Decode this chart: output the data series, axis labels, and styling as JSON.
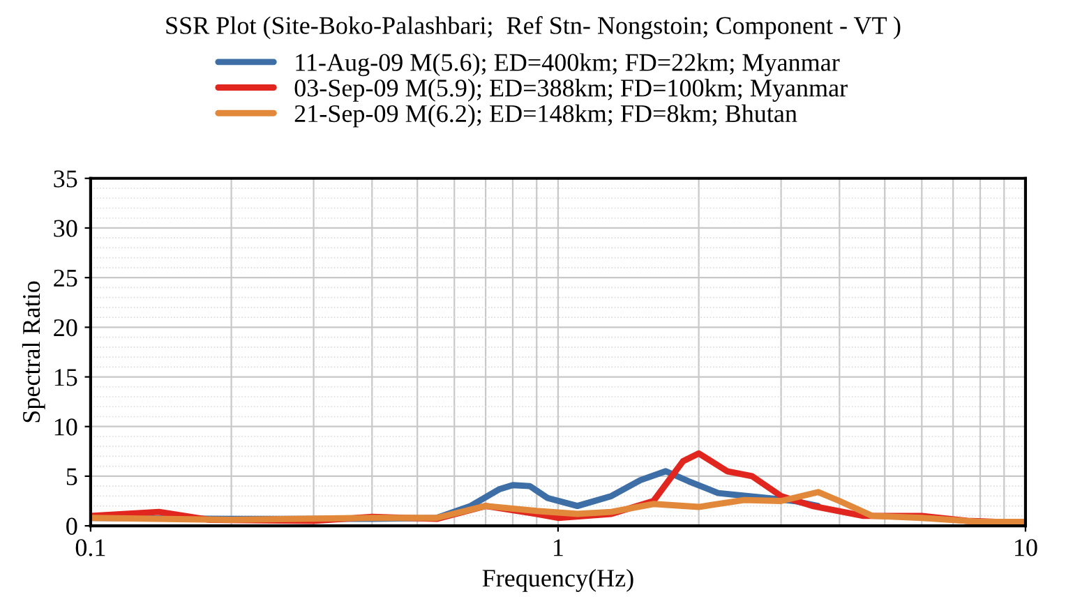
{
  "chart_data": {
    "type": "line",
    "title": "SSR Plot (Site-Boko-Palashbari;  Ref Stn- Nongstoin; Component - VT )",
    "xlabel": "Frequency(Hz)",
    "ylabel": "Spectral Ratio",
    "log": "x",
    "xlim": [
      0.1,
      10
    ],
    "xticks": [
      0.1,
      1,
      10
    ],
    "ylim": [
      0,
      35
    ],
    "yticks": [
      0,
      5,
      10,
      15,
      20,
      25,
      30,
      35
    ],
    "grid": true,
    "legend": "top",
    "marker": "none",
    "line_style": "solid",
    "series": [
      {
        "name": "11-Aug-09 M(5.6); ED=400km; FD=22km; Myanmar",
        "color": "#3e6ea6",
        "x": [
          0.1,
          0.2,
          0.4,
          0.55,
          0.65,
          0.75,
          0.8,
          0.87,
          0.95,
          1.1,
          1.3,
          1.5,
          1.7,
          1.9,
          2.2,
          2.8,
          3.2,
          3.6
        ],
        "values": [
          0.8,
          0.7,
          0.7,
          0.8,
          2.0,
          3.7,
          4.1,
          4.0,
          2.8,
          2.0,
          3.0,
          4.6,
          5.5,
          4.5,
          3.3,
          2.8,
          2.5,
          2.0
        ]
      },
      {
        "name": "03-Sep-09 M(5.9); ED=388km; FD=100km; Myanmar",
        "color": "#e0261e",
        "x": [
          0.1,
          0.14,
          0.18,
          0.3,
          0.4,
          0.55,
          0.7,
          0.9,
          1.0,
          1.3,
          1.6,
          1.85,
          2.0,
          2.3,
          2.6,
          3.0,
          3.5,
          4.5,
          6,
          7.5,
          10
        ],
        "values": [
          1.0,
          1.4,
          0.6,
          0.5,
          0.9,
          0.7,
          2.0,
          1.2,
          0.8,
          1.2,
          2.5,
          6.5,
          7.3,
          5.5,
          5.0,
          3.0,
          2.0,
          1.0,
          1.0,
          0.5,
          0.3
        ]
      },
      {
        "name": "21-Sep-09 M(6.2); ED=148km; FD=8km; Bhutan",
        "color": "#e2883a",
        "x": [
          0.1,
          0.2,
          0.4,
          0.55,
          0.7,
          0.9,
          1.1,
          1.3,
          1.6,
          2.0,
          2.5,
          3.0,
          3.6,
          4.0,
          4.7,
          6,
          8,
          10
        ],
        "values": [
          0.8,
          0.6,
          0.8,
          0.8,
          2.0,
          1.5,
          1.2,
          1.4,
          2.2,
          1.9,
          2.6,
          2.5,
          3.4,
          2.5,
          1.0,
          0.8,
          0.4,
          0.4
        ]
      }
    ]
  }
}
